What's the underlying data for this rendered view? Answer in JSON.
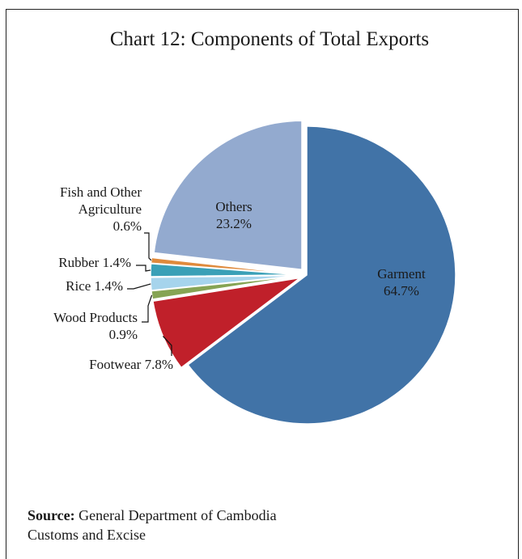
{
  "chart_data": {
    "type": "pie",
    "title": "Chart 12: Components of Total Exports",
    "slices": [
      {
        "name": "Garment",
        "value": 64.7,
        "label": "64.7%",
        "color": "#4173a7",
        "exploded": false
      },
      {
        "name": "Footwear",
        "value": 7.8,
        "label": "7.8%",
        "color": "#c0202a",
        "exploded": true
      },
      {
        "name": "Wood Products",
        "value": 0.9,
        "label": "0.9%",
        "color": "#86a454",
        "exploded": true
      },
      {
        "name": "Rice",
        "value": 1.4,
        "label": "1.4%",
        "color": "#a6d4ec",
        "exploded": true
      },
      {
        "name": "Rubber",
        "value": 1.4,
        "label": "1.4%",
        "color": "#3aa0b7",
        "exploded": true
      },
      {
        "name": "Fish and Other Agriculture",
        "value": 0.6,
        "label": "0.6%",
        "color": "#e08a3c",
        "exploded": true
      },
      {
        "name": "Others",
        "value": 23.2,
        "label": "23.2%",
        "color": "#93aacf",
        "exploded": true
      }
    ],
    "legend": "none"
  },
  "source": {
    "label": "Source:",
    "text": "General Department of Cambodia",
    "text2": "Customs and Excise"
  }
}
